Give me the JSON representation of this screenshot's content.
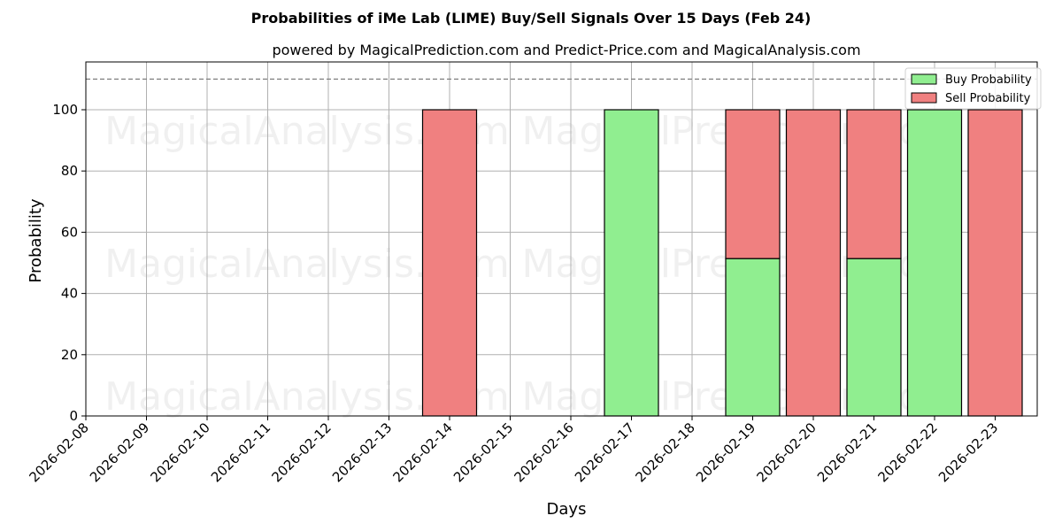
{
  "chart_data": {
    "type": "bar",
    "stacked": true,
    "title": "Probabilities of iMe Lab (LIME) Buy/Sell Signals Over 15 Days (Feb 24)",
    "subtitle": "powered by MagicalPrediction.com and Predict-Price.com and MagicalAnalysis.com",
    "xlabel": "Days",
    "ylabel": "Probability",
    "ylim": [
      0,
      115
    ],
    "yticks": [
      0,
      20,
      40,
      60,
      80,
      100
    ],
    "xticks": [
      "2026-02-08",
      "2026-02-09",
      "2026-02-10",
      "2026-02-11",
      "2026-02-12",
      "2026-02-13",
      "2026-02-14",
      "2026-02-15",
      "2026-02-16",
      "2026-02-17",
      "2026-02-18",
      "2026-02-19",
      "2026-02-20",
      "2026-02-21",
      "2026-02-22",
      "2026-02-23"
    ],
    "grid": true,
    "legend_position": "upper right",
    "reference_line": {
      "y": 110,
      "style": "dashed",
      "color": "#808080"
    },
    "categories": [
      "2026-02-14",
      "2026-02-17",
      "2026-02-19",
      "2026-02-20",
      "2026-02-21",
      "2026-02-22",
      "2026-02-23"
    ],
    "series": [
      {
        "name": "Buy Probability",
        "color": "#90EE90",
        "values": [
          0,
          100,
          51.4,
          0,
          51.4,
          100,
          0
        ]
      },
      {
        "name": "Sell Probability",
        "color": "#F08080",
        "values": [
          100,
          0,
          48.6,
          100,
          48.6,
          0,
          100
        ]
      }
    ],
    "watermarks": [
      "MagicalAnalysis.com",
      "MagicalPrediction.com"
    ]
  }
}
